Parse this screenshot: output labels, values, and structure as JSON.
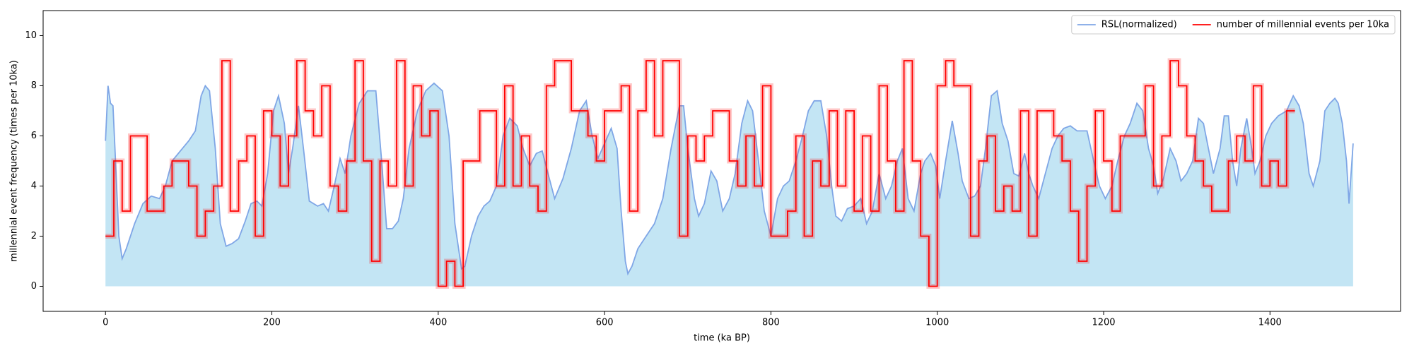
{
  "chart_data": {
    "type": "line",
    "x_label": "time (ka BP)",
    "y_label": "millennial event frequency (times per 10ka)",
    "xlim": [
      -75,
      1557
    ],
    "ylim": [
      -1,
      11
    ],
    "xticks": [
      0,
      200,
      400,
      600,
      800,
      1000,
      1200,
      1400
    ],
    "yticks": [
      0,
      2,
      4,
      6,
      8,
      10
    ],
    "grid": false,
    "legend": "upper right",
    "series": [
      {
        "name": "RSL(normalized)",
        "color": "#7fa6e6",
        "fill": "#c3e5f4",
        "style": "fill",
        "x": [
          0,
          3,
          6,
          9,
          12,
          16,
          20,
          25,
          35,
          45,
          55,
          65,
          72,
          80,
          90,
          100,
          108,
          115,
          120,
          125,
          132,
          138,
          145,
          152,
          160,
          168,
          175,
          182,
          188,
          195,
          202,
          208,
          215,
          220,
          225,
          232,
          238,
          245,
          255,
          262,
          268,
          275,
          282,
          288,
          295,
          305,
          315,
          325,
          332,
          338,
          345,
          352,
          358,
          365,
          375,
          385,
          395,
          405,
          413,
          420,
          428,
          432,
          440,
          448,
          455,
          462,
          470,
          478,
          486,
          495,
          502,
          510,
          518,
          525,
          532,
          540,
          550,
          560,
          570,
          578,
          585,
          592,
          600,
          608,
          615,
          620,
          625,
          628,
          633,
          640,
          650,
          660,
          670,
          680,
          690,
          695,
          700,
          708,
          713,
          720,
          728,
          735,
          742,
          750,
          757,
          765,
          772,
          778,
          785,
          792,
          800,
          808,
          815,
          822,
          830,
          838,
          845,
          852,
          860,
          867,
          873,
          878,
          885,
          892,
          900,
          908,
          915,
          922,
          930,
          938,
          945,
          952,
          958,
          965,
          972,
          980,
          985,
          992,
          998,
          1003,
          1010,
          1018,
          1025,
          1030,
          1038,
          1045,
          1052,
          1058,
          1065,
          1072,
          1078,
          1085,
          1092,
          1098,
          1105,
          1110,
          1115,
          1122,
          1130,
          1138,
          1145,
          1152,
          1160,
          1168,
          1175,
          1180,
          1188,
          1195,
          1202,
          1210,
          1217,
          1225,
          1232,
          1240,
          1247,
          1254,
          1260,
          1265,
          1272,
          1280,
          1287,
          1293,
          1300,
          1307,
          1314,
          1320,
          1326,
          1332,
          1340,
          1345,
          1350,
          1355,
          1360,
          1365,
          1372,
          1378,
          1382,
          1388,
          1395,
          1402,
          1410,
          1420,
          1428,
          1435,
          1440,
          1447,
          1452,
          1460,
          1466,
          1472,
          1478,
          1482,
          1487,
          1492,
          1495,
          1500
        ],
        "values": [
          5.8,
          8.0,
          7.3,
          7.2,
          5.0,
          2.0,
          1.1,
          1.5,
          2.5,
          3.3,
          3.6,
          3.5,
          4.0,
          5.0,
          5.4,
          5.8,
          6.2,
          7.6,
          8.0,
          7.8,
          5.5,
          2.5,
          1.6,
          1.7,
          1.9,
          2.6,
          3.3,
          3.4,
          3.2,
          4.5,
          7.0,
          7.6,
          6.5,
          4.5,
          5.5,
          7.2,
          5.5,
          3.4,
          3.2,
          3.3,
          3.0,
          4.0,
          5.1,
          4.5,
          6.0,
          7.3,
          7.8,
          7.8,
          5.0,
          2.3,
          2.3,
          2.6,
          3.5,
          5.5,
          7.0,
          7.8,
          8.1,
          7.8,
          6.0,
          2.5,
          0.7,
          0.8,
          2.0,
          2.8,
          3.2,
          3.4,
          4.0,
          6.0,
          6.7,
          6.4,
          5.5,
          4.8,
          5.3,
          5.4,
          4.5,
          3.5,
          4.3,
          5.5,
          7.0,
          7.4,
          6.0,
          5.1,
          5.7,
          6.3,
          5.5,
          3.0,
          1.0,
          0.5,
          0.8,
          1.5,
          2.0,
          2.5,
          3.5,
          5.5,
          7.2,
          7.2,
          5.5,
          3.5,
          2.8,
          3.3,
          4.6,
          4.2,
          3.0,
          3.5,
          4.5,
          6.5,
          7.4,
          7.0,
          5.0,
          3.0,
          2.0,
          3.5,
          4.0,
          4.2,
          5.0,
          6.0,
          7.0,
          7.4,
          7.4,
          6.0,
          4.0,
          2.8,
          2.6,
          3.1,
          3.2,
          3.5,
          2.5,
          3.0,
          4.5,
          3.5,
          4.0,
          5.0,
          5.5,
          3.5,
          3.0,
          4.5,
          5.0,
          5.3,
          4.8,
          3.5,
          5.0,
          6.6,
          5.3,
          4.2,
          3.5,
          3.6,
          4.0,
          5.5,
          7.6,
          7.8,
          6.5,
          5.8,
          4.5,
          4.4,
          5.3,
          4.5,
          4.0,
          3.5,
          4.5,
          5.5,
          6.0,
          6.3,
          6.4,
          6.2,
          6.2,
          6.2,
          5.0,
          4.0,
          3.5,
          4.0,
          5.0,
          6.0,
          6.5,
          7.3,
          7.0,
          5.5,
          4.8,
          3.7,
          4.3,
          5.5,
          5.0,
          4.2,
          4.5,
          5.0,
          6.7,
          6.5,
          5.5,
          4.5,
          5.5,
          6.8,
          6.8,
          5.0,
          4.0,
          5.5,
          6.7,
          5.5,
          4.5,
          5.0,
          6.0,
          6.5,
          6.8,
          7.0,
          7.6,
          7.2,
          6.5,
          4.5,
          4.0,
          5.0,
          7.0,
          7.3,
          7.5,
          7.3,
          6.5,
          5.0,
          3.3,
          5.7
        ]
      },
      {
        "name": "number of millennial events per 10ka",
        "color": "#ff0000",
        "style": "step",
        "x": [
          0,
          10,
          20,
          30,
          40,
          50,
          60,
          70,
          80,
          90,
          100,
          110,
          120,
          130,
          140,
          150,
          160,
          170,
          180,
          190,
          200,
          210,
          220,
          230,
          240,
          250,
          260,
          270,
          280,
          290,
          300,
          310,
          320,
          330,
          340,
          350,
          360,
          370,
          380,
          390,
          400,
          410,
          420,
          430,
          440,
          450,
          460,
          470,
          480,
          490,
          500,
          510,
          520,
          530,
          540,
          550,
          560,
          570,
          580,
          590,
          600,
          610,
          620,
          630,
          640,
          650,
          660,
          670,
          680,
          690,
          700,
          710,
          720,
          730,
          740,
          750,
          760,
          770,
          780,
          790,
          800,
          810,
          820,
          830,
          840,
          850,
          860,
          870,
          880,
          890,
          900,
          910,
          920,
          930,
          940,
          950,
          960,
          970,
          980,
          990,
          1000,
          1010,
          1020,
          1030,
          1040,
          1050,
          1060,
          1070,
          1080,
          1090,
          1100,
          1110,
          1120,
          1130,
          1140,
          1150,
          1160,
          1170,
          1180,
          1190,
          1200,
          1210,
          1220,
          1230,
          1240,
          1250,
          1260,
          1270,
          1280,
          1290,
          1300,
          1310,
          1320,
          1330,
          1340,
          1350,
          1360,
          1370,
          1380,
          1390,
          1400,
          1410,
          1420,
          1430
        ],
        "values": [
          2,
          5,
          3,
          6,
          6,
          3,
          3,
          4,
          5,
          5,
          4,
          2,
          3,
          4,
          9,
          3,
          5,
          6,
          2,
          7,
          6,
          4,
          6,
          9,
          7,
          6,
          8,
          4,
          3,
          5,
          9,
          5,
          1,
          5,
          4,
          9,
          4,
          8,
          6,
          7,
          0,
          1,
          0,
          5,
          5,
          7,
          7,
          4,
          8,
          4,
          6,
          4,
          3,
          8,
          9,
          9,
          7,
          7,
          6,
          5,
          7,
          7,
          8,
          3,
          7,
          9,
          6,
          9,
          9,
          2,
          6,
          5,
          6,
          7,
          7,
          5,
          4,
          6,
          4,
          8,
          2,
          2,
          3,
          6,
          2,
          5,
          4,
          7,
          4,
          7,
          3,
          6,
          3,
          8,
          5,
          3,
          9,
          5,
          2,
          0,
          8,
          9,
          8,
          8,
          2,
          5,
          6,
          3,
          4,
          3,
          7,
          2,
          7,
          7,
          6,
          5,
          3,
          1,
          4,
          7,
          5,
          3,
          6,
          6,
          6,
          8,
          4,
          6,
          9,
          8,
          6,
          5,
          4,
          3,
          3,
          5,
          6,
          5,
          8,
          4,
          5,
          4,
          7,
          7
        ]
      }
    ]
  }
}
